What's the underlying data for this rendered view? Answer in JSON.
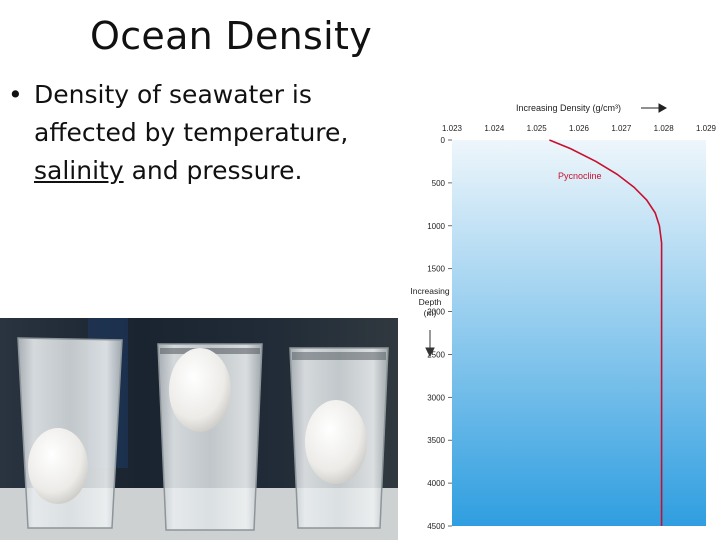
{
  "slide": {
    "title": "Ocean Density",
    "bullet": {
      "part1": "Density of seawater is affected by  temperature, ",
      "underlined": "salinity",
      "part2": " and pressure."
    }
  },
  "photo": {
    "subject": "three glasses of water with eggs",
    "colors": {
      "background": "#1e2833",
      "table": "#cfd3d4",
      "water": "#dfe4e6",
      "egg": "#f4f4f2"
    }
  },
  "chart_data": {
    "type": "line",
    "title": "Increasing Density (g/cm³)",
    "xlabel": "Increasing Density (g/cm³)",
    "ylabel_lines": [
      "Increasing",
      "Depth",
      "(m)"
    ],
    "x_ticks": [
      "1.023",
      "1.024",
      "1.025",
      "1.026",
      "1.027",
      "1.028",
      "1.029"
    ],
    "y_ticks": [
      "0",
      "500",
      "1000",
      "1500",
      "2000",
      "2500",
      "3000",
      "3500",
      "4000",
      "4500"
    ],
    "xlim": [
      1.023,
      1.029
    ],
    "ylim": [
      0,
      4500
    ],
    "y_inverted": true,
    "x_axis_position": "top",
    "annotation": "Pycnocline",
    "line_color": "#c8102e",
    "background_gradient": [
      "#eef6fb",
      "#2f9ee0"
    ],
    "series": [
      {
        "x": [
          1.0253,
          1.0258,
          1.0264,
          1.0269,
          1.0273,
          1.0276,
          1.0278,
          1.0279,
          1.02795,
          1.02795,
          1.02795,
          1.02795,
          1.02795
        ],
        "y": [
          0,
          100,
          250,
          400,
          550,
          700,
          850,
          1000,
          1200,
          1500,
          2500,
          3500,
          4500
        ]
      }
    ]
  }
}
